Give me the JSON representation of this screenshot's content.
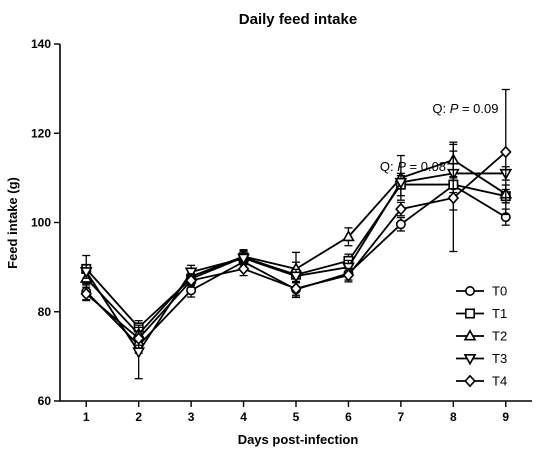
{
  "chart_data": {
    "type": "line",
    "title": "Daily feed intake",
    "xlabel": "Days post-infection",
    "ylabel": "Feed intake  (g)",
    "x": [
      1,
      2,
      3,
      4,
      5,
      6,
      7,
      8,
      9
    ],
    "x_tick_labels": [
      "1",
      "2",
      "3",
      "4",
      "5",
      "6",
      "7",
      "8",
      "9"
    ],
    "xlim": [
      0.5,
      9.5
    ],
    "ylim": [
      60,
      140
    ],
    "y_ticks": [
      60,
      80,
      100,
      120,
      140
    ],
    "y_tick_labels": [
      "60",
      "80",
      "100",
      "120",
      "140"
    ],
    "grid": false,
    "legend_position": "right",
    "error_bars": true,
    "series": [
      {
        "name": "T0",
        "marker": "circle",
        "values": [
          84.5,
          72.5,
          84.8,
          91.2,
          85.0,
          88.6,
          99.6,
          108.3,
          101.2
        ],
        "errors": [
          1.8,
          1.8,
          1.5,
          1.5,
          1.8,
          1.5,
          1.5,
          5.5,
          1.8
        ]
      },
      {
        "name": "T1",
        "marker": "square",
        "values": [
          89.6,
          76.5,
          87.4,
          92.2,
          88.3,
          91.4,
          108.5,
          108.5,
          105.9
        ],
        "errors": [
          3.0,
          1.5,
          1.5,
          1.5,
          5.0,
          1.5,
          2.5,
          1.8,
          1.5
        ]
      },
      {
        "name": "T2",
        "marker": "triangle-up",
        "values": [
          87.5,
          75.0,
          87.9,
          92.4,
          89.6,
          96.8,
          110.0,
          114.0,
          106.4
        ],
        "errors": [
          1.5,
          1.5,
          1.8,
          1.5,
          1.5,
          2.0,
          5.0,
          4.0,
          2.0
        ]
      },
      {
        "name": "T3",
        "marker": "triangle-down",
        "values": [
          89.0,
          71.0,
          88.9,
          92.0,
          88.0,
          90.0,
          109.0,
          111.0,
          111.0
        ],
        "errors": [
          1.5,
          6.0,
          1.5,
          1.5,
          1.5,
          1.5,
          1.5,
          5.0,
          1.5
        ]
      },
      {
        "name": "T4",
        "marker": "diamond",
        "values": [
          84.0,
          74.0,
          87.0,
          89.6,
          85.2,
          88.2,
          103.0,
          105.5,
          115.8
        ],
        "errors": [
          1.5,
          1.5,
          1.5,
          1.5,
          1.5,
          1.5,
          1.5,
          12.0,
          14.0
        ]
      }
    ],
    "annotations": [
      {
        "prefix": "Q: ",
        "italic": "P",
        "suffix": " = 0.09",
        "x": 7.6,
        "y": 124.5
      },
      {
        "prefix": "Q: ",
        "italic": "P",
        "suffix": " = 0.08",
        "x": 6.6,
        "y": 111.5
      }
    ]
  }
}
